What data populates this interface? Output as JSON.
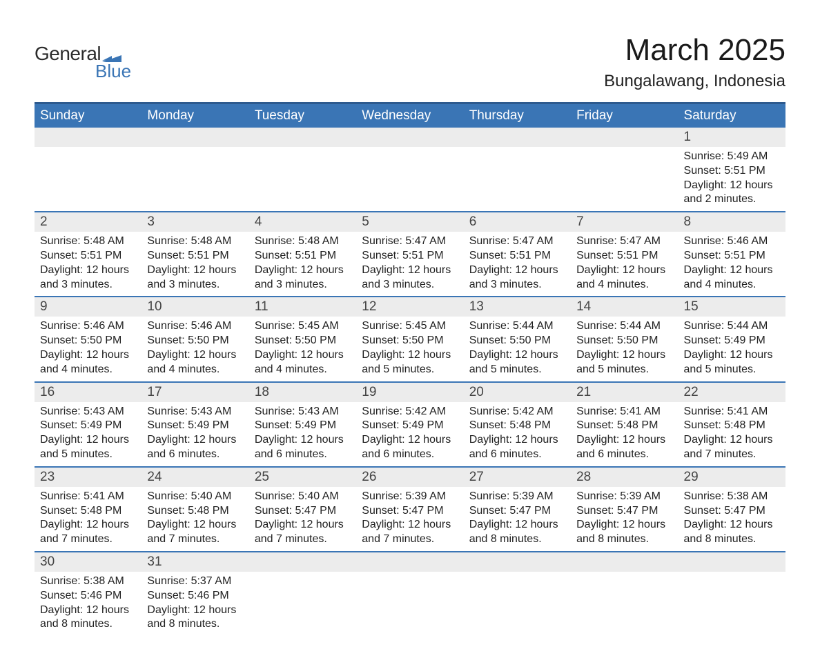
{
  "logo": {
    "general": "General",
    "blue": "Blue",
    "flag_color": "#3a75b5"
  },
  "title": "March 2025",
  "location": "Bungalawang, Indonesia",
  "colors": {
    "header_bg": "#3a75b5",
    "header_border_top": "#2d5a8e",
    "row_divider": "#3a75b5",
    "date_bg": "#ececec",
    "text": "#222222",
    "header_text": "#ffffff"
  },
  "fonts": {
    "title_size": 44,
    "location_size": 24,
    "header_size": 19,
    "date_size": 19,
    "body_size": 16
  },
  "day_headers": [
    "Sunday",
    "Monday",
    "Tuesday",
    "Wednesday",
    "Thursday",
    "Friday",
    "Saturday"
  ],
  "weeks": [
    [
      null,
      null,
      null,
      null,
      null,
      null,
      {
        "date": "1",
        "sunrise": "Sunrise: 5:49 AM",
        "sunset": "Sunset: 5:51 PM",
        "daylight": "Daylight: 12 hours and 2 minutes."
      }
    ],
    [
      {
        "date": "2",
        "sunrise": "Sunrise: 5:48 AM",
        "sunset": "Sunset: 5:51 PM",
        "daylight": "Daylight: 12 hours and 3 minutes."
      },
      {
        "date": "3",
        "sunrise": "Sunrise: 5:48 AM",
        "sunset": "Sunset: 5:51 PM",
        "daylight": "Daylight: 12 hours and 3 minutes."
      },
      {
        "date": "4",
        "sunrise": "Sunrise: 5:48 AM",
        "sunset": "Sunset: 5:51 PM",
        "daylight": "Daylight: 12 hours and 3 minutes."
      },
      {
        "date": "5",
        "sunrise": "Sunrise: 5:47 AM",
        "sunset": "Sunset: 5:51 PM",
        "daylight": "Daylight: 12 hours and 3 minutes."
      },
      {
        "date": "6",
        "sunrise": "Sunrise: 5:47 AM",
        "sunset": "Sunset: 5:51 PM",
        "daylight": "Daylight: 12 hours and 3 minutes."
      },
      {
        "date": "7",
        "sunrise": "Sunrise: 5:47 AM",
        "sunset": "Sunset: 5:51 PM",
        "daylight": "Daylight: 12 hours and 4 minutes."
      },
      {
        "date": "8",
        "sunrise": "Sunrise: 5:46 AM",
        "sunset": "Sunset: 5:51 PM",
        "daylight": "Daylight: 12 hours and 4 minutes."
      }
    ],
    [
      {
        "date": "9",
        "sunrise": "Sunrise: 5:46 AM",
        "sunset": "Sunset: 5:50 PM",
        "daylight": "Daylight: 12 hours and 4 minutes."
      },
      {
        "date": "10",
        "sunrise": "Sunrise: 5:46 AM",
        "sunset": "Sunset: 5:50 PM",
        "daylight": "Daylight: 12 hours and 4 minutes."
      },
      {
        "date": "11",
        "sunrise": "Sunrise: 5:45 AM",
        "sunset": "Sunset: 5:50 PM",
        "daylight": "Daylight: 12 hours and 4 minutes."
      },
      {
        "date": "12",
        "sunrise": "Sunrise: 5:45 AM",
        "sunset": "Sunset: 5:50 PM",
        "daylight": "Daylight: 12 hours and 5 minutes."
      },
      {
        "date": "13",
        "sunrise": "Sunrise: 5:44 AM",
        "sunset": "Sunset: 5:50 PM",
        "daylight": "Daylight: 12 hours and 5 minutes."
      },
      {
        "date": "14",
        "sunrise": "Sunrise: 5:44 AM",
        "sunset": "Sunset: 5:50 PM",
        "daylight": "Daylight: 12 hours and 5 minutes."
      },
      {
        "date": "15",
        "sunrise": "Sunrise: 5:44 AM",
        "sunset": "Sunset: 5:49 PM",
        "daylight": "Daylight: 12 hours and 5 minutes."
      }
    ],
    [
      {
        "date": "16",
        "sunrise": "Sunrise: 5:43 AM",
        "sunset": "Sunset: 5:49 PM",
        "daylight": "Daylight: 12 hours and 5 minutes."
      },
      {
        "date": "17",
        "sunrise": "Sunrise: 5:43 AM",
        "sunset": "Sunset: 5:49 PM",
        "daylight": "Daylight: 12 hours and 6 minutes."
      },
      {
        "date": "18",
        "sunrise": "Sunrise: 5:43 AM",
        "sunset": "Sunset: 5:49 PM",
        "daylight": "Daylight: 12 hours and 6 minutes."
      },
      {
        "date": "19",
        "sunrise": "Sunrise: 5:42 AM",
        "sunset": "Sunset: 5:49 PM",
        "daylight": "Daylight: 12 hours and 6 minutes."
      },
      {
        "date": "20",
        "sunrise": "Sunrise: 5:42 AM",
        "sunset": "Sunset: 5:48 PM",
        "daylight": "Daylight: 12 hours and 6 minutes."
      },
      {
        "date": "21",
        "sunrise": "Sunrise: 5:41 AM",
        "sunset": "Sunset: 5:48 PM",
        "daylight": "Daylight: 12 hours and 6 minutes."
      },
      {
        "date": "22",
        "sunrise": "Sunrise: 5:41 AM",
        "sunset": "Sunset: 5:48 PM",
        "daylight": "Daylight: 12 hours and 7 minutes."
      }
    ],
    [
      {
        "date": "23",
        "sunrise": "Sunrise: 5:41 AM",
        "sunset": "Sunset: 5:48 PM",
        "daylight": "Daylight: 12 hours and 7 minutes."
      },
      {
        "date": "24",
        "sunrise": "Sunrise: 5:40 AM",
        "sunset": "Sunset: 5:48 PM",
        "daylight": "Daylight: 12 hours and 7 minutes."
      },
      {
        "date": "25",
        "sunrise": "Sunrise: 5:40 AM",
        "sunset": "Sunset: 5:47 PM",
        "daylight": "Daylight: 12 hours and 7 minutes."
      },
      {
        "date": "26",
        "sunrise": "Sunrise: 5:39 AM",
        "sunset": "Sunset: 5:47 PM",
        "daylight": "Daylight: 12 hours and 7 minutes."
      },
      {
        "date": "27",
        "sunrise": "Sunrise: 5:39 AM",
        "sunset": "Sunset: 5:47 PM",
        "daylight": "Daylight: 12 hours and 8 minutes."
      },
      {
        "date": "28",
        "sunrise": "Sunrise: 5:39 AM",
        "sunset": "Sunset: 5:47 PM",
        "daylight": "Daylight: 12 hours and 8 minutes."
      },
      {
        "date": "29",
        "sunrise": "Sunrise: 5:38 AM",
        "sunset": "Sunset: 5:47 PM",
        "daylight": "Daylight: 12 hours and 8 minutes."
      }
    ],
    [
      {
        "date": "30",
        "sunrise": "Sunrise: 5:38 AM",
        "sunset": "Sunset: 5:46 PM",
        "daylight": "Daylight: 12 hours and 8 minutes."
      },
      {
        "date": "31",
        "sunrise": "Sunrise: 5:37 AM",
        "sunset": "Sunset: 5:46 PM",
        "daylight": "Daylight: 12 hours and 8 minutes."
      },
      null,
      null,
      null,
      null,
      null
    ]
  ]
}
